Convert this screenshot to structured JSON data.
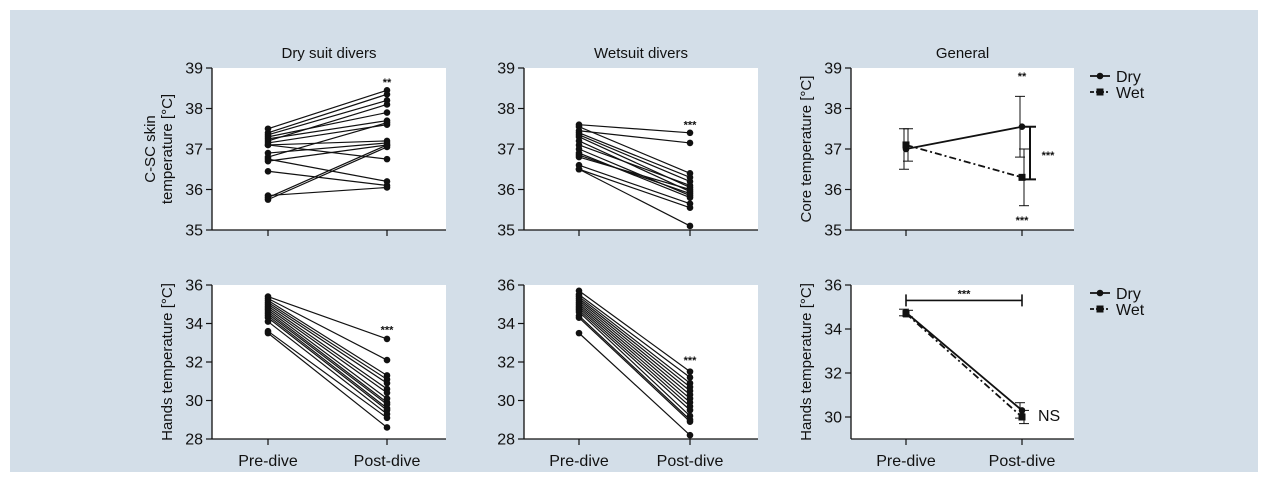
{
  "figure": {
    "background": "#d3dee8",
    "plot_background": "#ffffff",
    "ink": "#111111"
  },
  "chart_data": [
    {
      "id": "dry-skin",
      "type": "line",
      "title": "Dry suit divers",
      "ylabel": [
        "C-SC skin",
        "temperature [°C]"
      ],
      "xlabel": "",
      "categories": [
        "Pre-dive",
        "Post-dive"
      ],
      "show_xticklabels": false,
      "ylim": [
        35,
        39
      ],
      "yticks": [
        35,
        36,
        37,
        38,
        39
      ],
      "grid": false,
      "annotations": [
        {
          "text": "**",
          "x": "Post-dive",
          "y": 38.7
        }
      ],
      "pairs": [
        [
          37.5,
          38.45
        ],
        [
          37.4,
          38.35
        ],
        [
          37.35,
          38.2
        ],
        [
          37.3,
          37.9
        ],
        [
          37.25,
          37.7
        ],
        [
          37.2,
          38.1
        ],
        [
          37.15,
          37.6
        ],
        [
          37.1,
          37.2
        ],
        [
          37.1,
          36.75
        ],
        [
          36.9,
          37.15
        ],
        [
          36.8,
          37.65
        ],
        [
          36.75,
          36.2
        ],
        [
          36.7,
          37.1
        ],
        [
          36.45,
          36.1
        ],
        [
          35.85,
          36.05
        ],
        [
          35.8,
          37.1
        ],
        [
          35.75,
          37.05
        ]
      ]
    },
    {
      "id": "wet-skin",
      "type": "line",
      "title": "Wetsuit divers",
      "ylabel": [],
      "xlabel": "",
      "categories": [
        "Pre-dive",
        "Post-dive"
      ],
      "show_xticklabels": false,
      "ylim": [
        35,
        39
      ],
      "yticks": [
        35,
        36,
        37,
        38,
        39
      ],
      "grid": false,
      "annotations": [
        {
          "text": "***",
          "x": "Post-dive",
          "y": 37.65
        }
      ],
      "pairs": [
        [
          37.6,
          37.4
        ],
        [
          37.55,
          36.4
        ],
        [
          37.45,
          37.15
        ],
        [
          37.4,
          36.3
        ],
        [
          37.35,
          36.2
        ],
        [
          37.3,
          36.05
        ],
        [
          37.2,
          35.95
        ],
        [
          37.1,
          36.1
        ],
        [
          37.0,
          35.85
        ],
        [
          36.9,
          35.8
        ],
        [
          36.85,
          35.9
        ],
        [
          36.8,
          36.0
        ],
        [
          36.6,
          35.65
        ],
        [
          36.5,
          35.55
        ],
        [
          36.5,
          35.1
        ]
      ]
    },
    {
      "id": "core-general",
      "type": "line",
      "title": "General",
      "ylabel": [
        "Core temperature [°C]"
      ],
      "xlabel": "",
      "categories": [
        "Pre-dive",
        "Post-dive"
      ],
      "show_xticklabels": false,
      "ylim": [
        35,
        39
      ],
      "yticks": [
        35,
        36,
        37,
        38,
        39
      ],
      "grid": false,
      "legend": {
        "placement": "right",
        "entries": [
          "Dry",
          "Wet"
        ]
      },
      "series": [
        {
          "name": "Dry",
          "marker": "circle",
          "dash": "solid",
          "values": [
            37.0,
            37.55
          ],
          "err": [
            0.5,
            0.75
          ]
        },
        {
          "name": "Wet",
          "marker": "square",
          "dash": "dashdot",
          "values": [
            37.1,
            36.3
          ],
          "err": [
            0.4,
            0.7
          ]
        }
      ],
      "annotations": [
        {
          "text": "**",
          "x": "Post-dive",
          "y": 38.85
        },
        {
          "text": "***",
          "x": "Post-dive",
          "y": 35.3
        }
      ],
      "bracket": {
        "orientation": "vertical",
        "y1": 36.25,
        "y2": 37.55,
        "label": "***"
      }
    },
    {
      "id": "dry-hands",
      "type": "line",
      "title": "",
      "ylabel": [
        "Hands temperature [°C]"
      ],
      "xlabel": "",
      "categories": [
        "Pre-dive",
        "Post-dive"
      ],
      "show_xticklabels": true,
      "ylim": [
        28,
        36
      ],
      "yticks": [
        28,
        30,
        32,
        34,
        36
      ],
      "grid": false,
      "annotations": [
        {
          "text": "***",
          "x": "Post-dive",
          "y": 33.8
        }
      ],
      "pairs": [
        [
          35.4,
          33.2
        ],
        [
          35.3,
          32.1
        ],
        [
          35.2,
          31.3
        ],
        [
          35.1,
          31.1
        ],
        [
          35.0,
          30.9
        ],
        [
          34.9,
          30.6
        ],
        [
          34.8,
          30.4
        ],
        [
          34.7,
          30.1
        ],
        [
          34.6,
          29.9
        ],
        [
          34.5,
          29.8
        ],
        [
          34.4,
          29.6
        ],
        [
          34.3,
          29.5
        ],
        [
          34.1,
          29.3
        ],
        [
          33.6,
          29.1
        ],
        [
          33.5,
          28.6
        ]
      ]
    },
    {
      "id": "wet-hands",
      "type": "line",
      "title": "",
      "ylabel": [],
      "xlabel": "",
      "categories": [
        "Pre-dive",
        "Post-dive"
      ],
      "show_xticklabels": true,
      "ylim": [
        28,
        36
      ],
      "yticks": [
        28,
        30,
        32,
        34,
        36
      ],
      "grid": false,
      "annotations": [
        {
          "text": "***",
          "x": "Post-dive",
          "y": 32.2
        }
      ],
      "pairs": [
        [
          35.7,
          31.5
        ],
        [
          35.5,
          31.2
        ],
        [
          35.4,
          30.9
        ],
        [
          35.3,
          30.7
        ],
        [
          35.2,
          30.5
        ],
        [
          35.1,
          30.3
        ],
        [
          35.0,
          30.1
        ],
        [
          34.9,
          29.9
        ],
        [
          34.8,
          29.7
        ],
        [
          34.7,
          29.5
        ],
        [
          34.6,
          29.2
        ],
        [
          34.4,
          29.0
        ],
        [
          34.3,
          28.9
        ],
        [
          33.5,
          28.2
        ]
      ]
    },
    {
      "id": "hands-general",
      "type": "line",
      "title": "",
      "ylabel": [
        "Hands temperature [°C]"
      ],
      "xlabel": "",
      "categories": [
        "Pre-dive",
        "Post-dive"
      ],
      "show_xticklabels": true,
      "ylim": [
        29,
        36
      ],
      "yticks": [
        30,
        32,
        34,
        36
      ],
      "grid": false,
      "legend": {
        "placement": "right",
        "entries": [
          "Dry",
          "Wet"
        ]
      },
      "series": [
        {
          "name": "Dry",
          "marker": "circle",
          "dash": "solid",
          "values": [
            34.75,
            30.3
          ],
          "err": [
            0.15,
            0.35
          ]
        },
        {
          "name": "Wet",
          "marker": "square",
          "dash": "dashdot",
          "values": [
            34.7,
            30.0
          ],
          "err": [
            0.15,
            0.3
          ]
        }
      ],
      "annotations": [
        {
          "text": "NS",
          "x": "Post-dive",
          "y": 30.1,
          "side": "right"
        }
      ],
      "bracket": {
        "orientation": "horizontal",
        "y": 35.3,
        "label": "***"
      }
    }
  ]
}
